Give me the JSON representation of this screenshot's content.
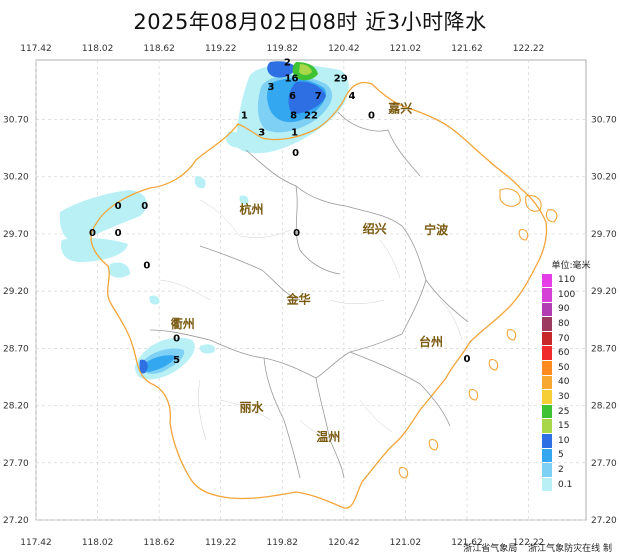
{
  "title": "2025年08月02日08时  近3小时降水",
  "axes": {
    "lon_ticks": [
      "117.42",
      "118.02",
      "118.62",
      "119.22",
      "119.82",
      "120.42",
      "121.02",
      "121.62",
      "122.22"
    ],
    "lat_ticks": [
      "30.70",
      "30.20",
      "29.70",
      "29.20",
      "28.70",
      "28.20",
      "27.70",
      "27.20"
    ]
  },
  "cities": [
    {
      "name": "嘉兴",
      "lon": 120.97,
      "lat": 30.76
    },
    {
      "name": "杭州",
      "lon": 119.52,
      "lat": 29.88
    },
    {
      "name": "绍兴",
      "lon": 120.72,
      "lat": 29.71
    },
    {
      "name": "宁波",
      "lon": 121.32,
      "lat": 29.7
    },
    {
      "name": "金华",
      "lon": 119.98,
      "lat": 29.09
    },
    {
      "name": "衢州",
      "lon": 118.85,
      "lat": 28.88
    },
    {
      "name": "台州",
      "lon": 121.27,
      "lat": 28.72
    },
    {
      "name": "丽水",
      "lon": 119.52,
      "lat": 28.15
    },
    {
      "name": "温州",
      "lon": 120.27,
      "lat": 27.89
    }
  ],
  "rain_values": [
    {
      "v": "2",
      "lon": 119.87,
      "lat": 31.17
    },
    {
      "v": "16",
      "lon": 119.91,
      "lat": 31.03
    },
    {
      "v": "29",
      "lon": 120.39,
      "lat": 31.03
    },
    {
      "v": "3",
      "lon": 119.71,
      "lat": 30.96
    },
    {
      "v": "6",
      "lon": 119.92,
      "lat": 30.88
    },
    {
      "v": "7",
      "lon": 120.17,
      "lat": 30.88
    },
    {
      "v": "4",
      "lon": 120.5,
      "lat": 30.88
    },
    {
      "v": "1",
      "lon": 119.45,
      "lat": 30.71
    },
    {
      "v": "8",
      "lon": 119.93,
      "lat": 30.71
    },
    {
      "v": "22",
      "lon": 120.1,
      "lat": 30.71
    },
    {
      "v": "0",
      "lon": 120.69,
      "lat": 30.71
    },
    {
      "v": "3",
      "lon": 119.62,
      "lat": 30.56
    },
    {
      "v": "1",
      "lon": 119.94,
      "lat": 30.56
    },
    {
      "v": "0",
      "lon": 119.95,
      "lat": 30.38
    },
    {
      "v": "0",
      "lon": 118.22,
      "lat": 29.92
    },
    {
      "v": "0",
      "lon": 118.48,
      "lat": 29.92
    },
    {
      "v": "0",
      "lon": 117.97,
      "lat": 29.68
    },
    {
      "v": "0",
      "lon": 118.22,
      "lat": 29.68
    },
    {
      "v": "0",
      "lon": 119.96,
      "lat": 29.68
    },
    {
      "v": "0",
      "lon": 118.5,
      "lat": 29.4
    },
    {
      "v": "0",
      "lon": 118.79,
      "lat": 28.76
    },
    {
      "v": "5",
      "lon": 118.79,
      "lat": 28.57
    },
    {
      "v": "0",
      "lon": 121.62,
      "lat": 28.58
    }
  ],
  "legend": {
    "title": "单位:毫米",
    "items": [
      {
        "label": "110",
        "color": "#e63ee6"
      },
      {
        "label": "100",
        "color": "#d53fd5"
      },
      {
        "label": "90",
        "color": "#b23cb2"
      },
      {
        "label": "80",
        "color": "#9c3a60"
      },
      {
        "label": "70",
        "color": "#c8282a"
      },
      {
        "label": "60",
        "color": "#f02a2a"
      },
      {
        "label": "50",
        "color": "#ff8a20"
      },
      {
        "label": "40",
        "color": "#f7a831"
      },
      {
        "label": "30",
        "color": "#f6cf37"
      },
      {
        "label": "25",
        "color": "#3fc233"
      },
      {
        "label": "15",
        "color": "#a8d84a"
      },
      {
        "label": "10",
        "color": "#2e6fe3"
      },
      {
        "label": "5",
        "color": "#33a8f0"
      },
      {
        "label": "2",
        "color": "#7fd0f5"
      },
      {
        "label": "0.1",
        "color": "#b8f0f6"
      }
    ]
  },
  "credits": [
    "浙江省气象局",
    "浙江气象防灾在线 制"
  ]
}
